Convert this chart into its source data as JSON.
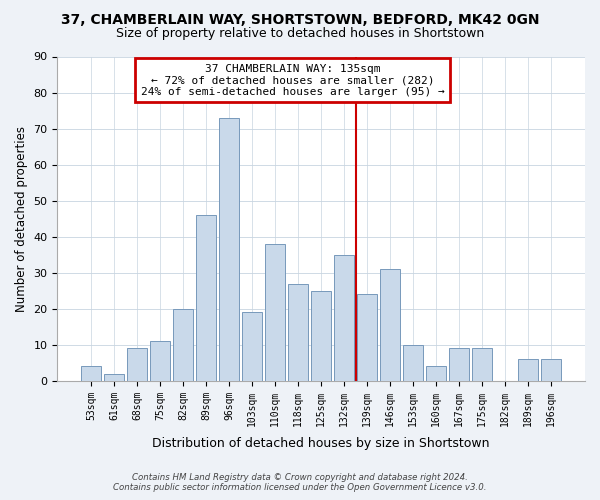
{
  "title": "37, CHAMBERLAIN WAY, SHORTSTOWN, BEDFORD, MK42 0GN",
  "subtitle": "Size of property relative to detached houses in Shortstown",
  "xlabel": "Distribution of detached houses by size in Shortstown",
  "ylabel": "Number of detached properties",
  "bar_labels": [
    "53sqm",
    "61sqm",
    "68sqm",
    "75sqm",
    "82sqm",
    "89sqm",
    "96sqm",
    "103sqm",
    "110sqm",
    "118sqm",
    "125sqm",
    "132sqm",
    "139sqm",
    "146sqm",
    "153sqm",
    "160sqm",
    "167sqm",
    "175sqm",
    "182sqm",
    "189sqm",
    "196sqm"
  ],
  "bar_values": [
    4,
    2,
    9,
    11,
    20,
    46,
    73,
    19,
    38,
    27,
    25,
    35,
    24,
    31,
    10,
    4,
    9,
    9,
    0,
    6,
    6
  ],
  "bar_color": "#c9d9ea",
  "bar_edge_color": "#7799bb",
  "annotation_text_line1": "37 CHAMBERLAIN WAY: 135sqm",
  "annotation_text_line2": "← 72% of detached houses are smaller (282)",
  "annotation_text_line3": "24% of semi-detached houses are larger (95) →",
  "annotation_box_color": "white",
  "annotation_box_edge": "#cc0000",
  "vline_color": "#cc0000",
  "ylim": [
    0,
    90
  ],
  "yticks": [
    0,
    10,
    20,
    30,
    40,
    50,
    60,
    70,
    80,
    90
  ],
  "footer_line1": "Contains HM Land Registry data © Crown copyright and database right 2024.",
  "footer_line2": "Contains public sector information licensed under the Open Government Licence v3.0.",
  "bg_color": "#eef2f7",
  "plot_bg_color": "#ffffff",
  "grid_color": "#c8d4e0",
  "title_fontsize": 10,
  "subtitle_fontsize": 9
}
